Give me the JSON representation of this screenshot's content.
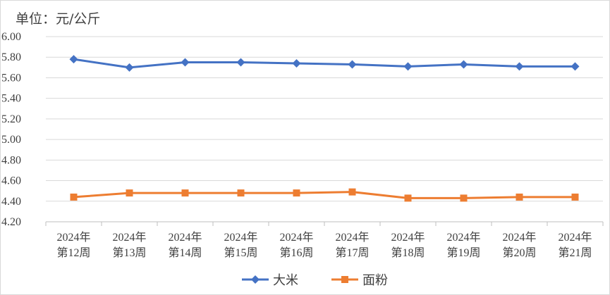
{
  "chart_data": {
    "type": "line",
    "unit_label": "单位：元/公斤",
    "categories": [
      [
        "2024年",
        "第12周"
      ],
      [
        "2024年",
        "第13周"
      ],
      [
        "2024年",
        "第14周"
      ],
      [
        "2024年",
        "第15周"
      ],
      [
        "2024年",
        "第16周"
      ],
      [
        "2024年",
        "第17周"
      ],
      [
        "2024年",
        "第18周"
      ],
      [
        "2024年",
        "第19周"
      ],
      [
        "2024年",
        "第20周"
      ],
      [
        "2024年",
        "第21周"
      ]
    ],
    "series": [
      {
        "name": "大米",
        "color": "#4472c4",
        "marker": "diamond",
        "values": [
          5.78,
          5.7,
          5.75,
          5.75,
          5.74,
          5.73,
          5.71,
          5.73,
          5.71,
          5.71
        ]
      },
      {
        "name": "面粉",
        "color": "#ed7d31",
        "marker": "square",
        "values": [
          4.44,
          4.48,
          4.48,
          4.48,
          4.48,
          4.49,
          4.43,
          4.43,
          4.44,
          4.44
        ]
      }
    ],
    "ylim": [
      4.2,
      6.0
    ],
    "yticks": [
      "4.20",
      "4.40",
      "4.60",
      "4.80",
      "5.00",
      "5.20",
      "5.40",
      "5.60",
      "5.80",
      "6.00"
    ],
    "grid": true,
    "legend_position": "bottom"
  }
}
